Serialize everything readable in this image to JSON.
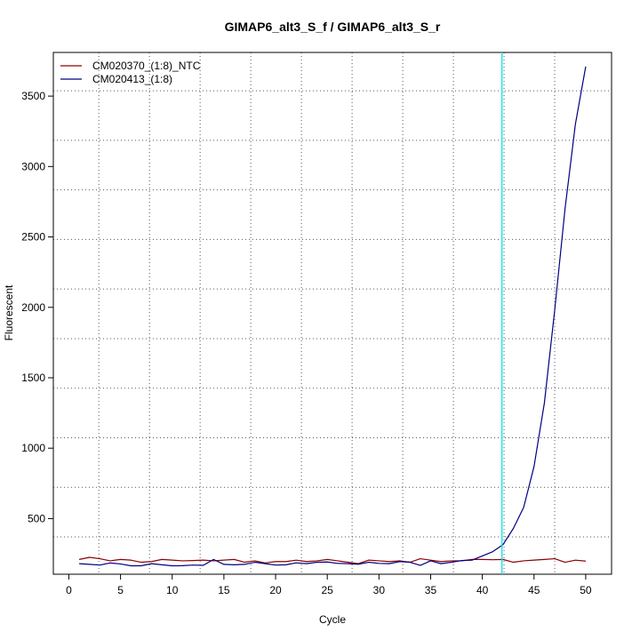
{
  "chart_data": {
    "type": "line",
    "title": "GIMAP6_alt3_S_f / GIMAP6_alt3_S_r",
    "xlabel": "Cycle",
    "ylabel": "Fluorescent",
    "xlim": [
      -1.5,
      52.5
    ],
    "ylim": [
      105,
      3810
    ],
    "x_ticks": [
      0,
      5,
      10,
      15,
      20,
      25,
      30,
      35,
      40,
      45,
      50
    ],
    "y_ticks": [
      500,
      1000,
      1500,
      2000,
      2500,
      3000,
      3500
    ],
    "x_grid": [
      2.9,
      7.8,
      12.7,
      17.6,
      22.5,
      27.4,
      32.3,
      37.2,
      42.1,
      47.0
    ],
    "y_grid": [
      370,
      722,
      1074,
      1426,
      1778,
      2130,
      2482,
      2834,
      3186,
      3538
    ],
    "grid": "dotted",
    "legend_position": "top-left",
    "threshold_cycle": 41.9,
    "threshold_color": "#00e5ee",
    "x": [
      1,
      2,
      3,
      4,
      5,
      6,
      7,
      8,
      9,
      10,
      11,
      12,
      13,
      14,
      15,
      16,
      17,
      18,
      19,
      20,
      21,
      22,
      23,
      24,
      25,
      26,
      27,
      28,
      29,
      30,
      31,
      32,
      33,
      34,
      35,
      36,
      37,
      38,
      39,
      40,
      41,
      42,
      43,
      44,
      45,
      46,
      47,
      48,
      49,
      50
    ],
    "series": [
      {
        "name": "CM020370_(1:8)_NTC",
        "color": "#8b0000",
        "values": [
          210,
          225,
          215,
          200,
          210,
          205,
          190,
          195,
          210,
          205,
          200,
          202,
          205,
          200,
          205,
          210,
          190,
          200,
          185,
          195,
          195,
          205,
          195,
          200,
          210,
          200,
          190,
          180,
          205,
          200,
          195,
          200,
          190,
          215,
          205,
          195,
          200,
          200,
          210,
          210,
          208,
          210,
          190,
          200,
          205,
          210,
          215,
          190,
          205,
          198
        ]
      },
      {
        "name": "CM020413_(1:8)",
        "color": "#000080",
        "values": [
          180,
          175,
          170,
          185,
          178,
          165,
          165,
          180,
          172,
          165,
          166,
          170,
          168,
          210,
          175,
          172,
          175,
          190,
          180,
          170,
          172,
          186,
          180,
          190,
          192,
          182,
          180,
          176,
          190,
          182,
          180,
          195,
          190,
          168,
          200,
          180,
          190,
          202,
          205,
          235,
          265,
          315,
          430,
          580,
          870,
          1320,
          1980,
          2700,
          3300,
          3710
        ]
      }
    ]
  }
}
